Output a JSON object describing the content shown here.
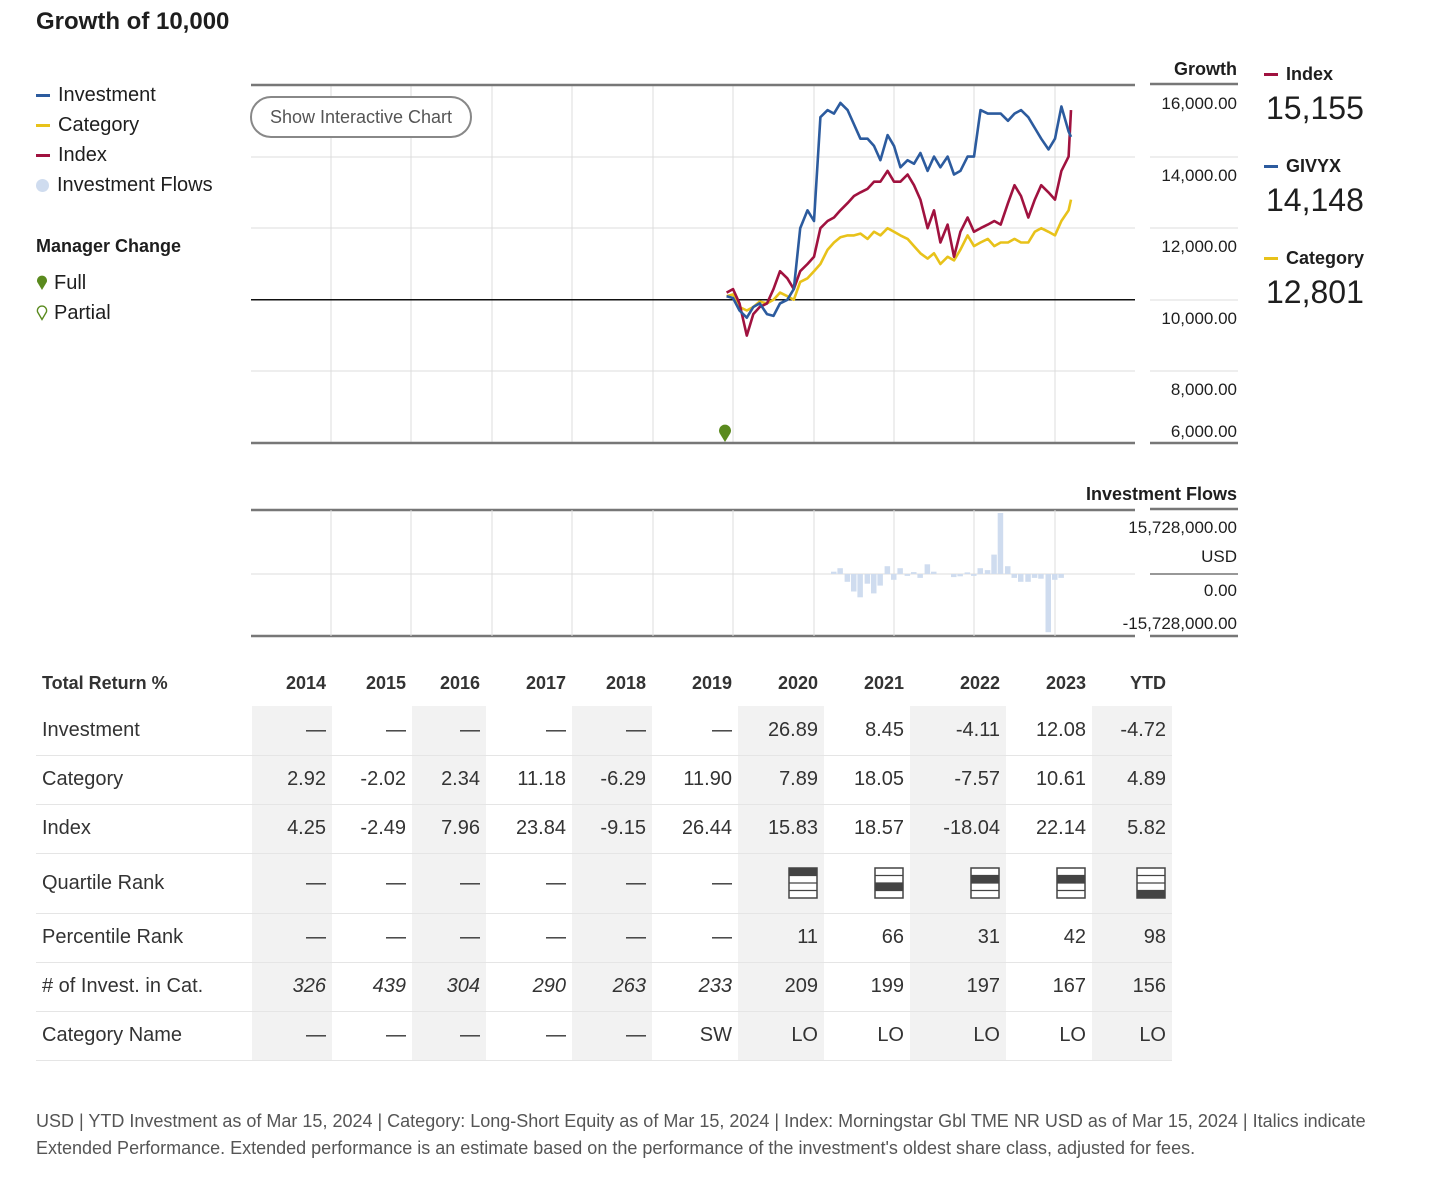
{
  "title": "Growth of 10,000",
  "legend": [
    {
      "label": "Investment",
      "color": "#2c5b9e",
      "kind": "line"
    },
    {
      "label": "Category",
      "color": "#e8c21a",
      "kind": "line"
    },
    {
      "label": "Index",
      "color": "#a0123f",
      "kind": "line"
    },
    {
      "label": "Investment Flows",
      "color": "#cfdcef",
      "kind": "dot"
    }
  ],
  "manager_change": {
    "title": "Manager Change",
    "full": "Full",
    "partial": "Partial",
    "color": "#5a8a1e"
  },
  "interactive_button": "Show Interactive Chart",
  "annotations": [
    {
      "name": "Index",
      "value": "15,155",
      "color": "#a0123f"
    },
    {
      "name": "GIVYX",
      "value": "14,148",
      "color": "#2c5b9e"
    },
    {
      "name": "Category",
      "value": "12,801",
      "color": "#e8c21a"
    }
  ],
  "chart_data": [
    {
      "type": "line",
      "ylabel": "Growth",
      "y_ticks": [
        "16,000.00",
        "14,000.00",
        "12,000.00",
        "10,000.00",
        "8,000.00",
        "6,000.00"
      ],
      "ylim": [
        6000,
        16000
      ],
      "xlim": [
        2014.0,
        2024.2
      ],
      "manager_change_full_at": 2019.9,
      "series": [
        {
          "name": "Investment",
          "color": "#2c5b9e",
          "x": [
            2019.92,
            2020.0,
            2020.08,
            2020.17,
            2020.25,
            2020.33,
            2020.42,
            2020.5,
            2020.58,
            2020.67,
            2020.75,
            2020.83,
            2020.92,
            2021.0,
            2021.08,
            2021.17,
            2021.25,
            2021.33,
            2021.42,
            2021.5,
            2021.58,
            2021.67,
            2021.75,
            2021.83,
            2021.92,
            2022.0,
            2022.08,
            2022.17,
            2022.25,
            2022.33,
            2022.42,
            2022.5,
            2022.58,
            2022.67,
            2022.75,
            2022.83,
            2022.92,
            2023.0,
            2023.08,
            2023.17,
            2023.25,
            2023.33,
            2023.42,
            2023.5,
            2023.58,
            2023.67,
            2023.75,
            2023.83,
            2023.92,
            2024.0,
            2024.08,
            2024.17,
            2024.2
          ],
          "y": [
            10100,
            10050,
            9700,
            9500,
            9800,
            9900,
            9600,
            9550,
            9900,
            10000,
            10300,
            12000,
            12500,
            12200,
            15100,
            15300,
            15200,
            15500,
            15300,
            14900,
            14500,
            14500,
            14300,
            13900,
            14600,
            14300,
            13700,
            13900,
            13800,
            14100,
            13600,
            14000,
            13700,
            14000,
            13500,
            13600,
            14000,
            14000,
            15300,
            15200,
            15200,
            15200,
            15000,
            15200,
            15300,
            15100,
            14800,
            14500,
            14200,
            14500,
            15400,
            14700,
            14550
          ]
        },
        {
          "name": "Category",
          "color": "#e8c21a",
          "x": [
            2019.92,
            2020.0,
            2020.08,
            2020.17,
            2020.25,
            2020.33,
            2020.42,
            2020.5,
            2020.58,
            2020.67,
            2020.75,
            2020.83,
            2020.92,
            2021.0,
            2021.08,
            2021.17,
            2021.25,
            2021.33,
            2021.42,
            2021.5,
            2021.58,
            2021.67,
            2021.75,
            2021.83,
            2021.92,
            2022.0,
            2022.08,
            2022.17,
            2022.25,
            2022.33,
            2022.42,
            2022.5,
            2022.58,
            2022.67,
            2022.75,
            2022.83,
            2022.92,
            2023.0,
            2023.08,
            2023.17,
            2023.25,
            2023.33,
            2023.42,
            2023.5,
            2023.58,
            2023.67,
            2023.75,
            2023.83,
            2023.92,
            2024.0,
            2024.08,
            2024.17,
            2024.2
          ],
          "y": [
            10100,
            10150,
            9800,
            9700,
            9800,
            9950,
            9900,
            10000,
            10200,
            10100,
            10000,
            10500,
            10600,
            10800,
            11000,
            11400,
            11600,
            11750,
            11800,
            11800,
            11850,
            11700,
            11900,
            11800,
            12000,
            11900,
            11800,
            11700,
            11500,
            11300,
            11150,
            11300,
            11000,
            11200,
            11100,
            11400,
            11800,
            11500,
            11600,
            11700,
            11500,
            11600,
            11600,
            11700,
            11600,
            11600,
            11900,
            12000,
            11900,
            11800,
            12200,
            12500,
            12800
          ]
        },
        {
          "name": "Index",
          "color": "#a0123f",
          "x": [
            2019.92,
            2020.0,
            2020.08,
            2020.17,
            2020.25,
            2020.33,
            2020.42,
            2020.5,
            2020.58,
            2020.67,
            2020.75,
            2020.83,
            2020.92,
            2021.0,
            2021.08,
            2021.17,
            2021.25,
            2021.33,
            2021.42,
            2021.5,
            2021.58,
            2021.67,
            2021.75,
            2021.83,
            2021.92,
            2022.0,
            2022.08,
            2022.17,
            2022.25,
            2022.33,
            2022.42,
            2022.5,
            2022.58,
            2022.67,
            2022.75,
            2022.83,
            2022.92,
            2023.0,
            2023.08,
            2023.17,
            2023.25,
            2023.33,
            2023.42,
            2023.5,
            2023.58,
            2023.67,
            2023.75,
            2023.83,
            2023.92,
            2024.0,
            2024.08,
            2024.17,
            2024.2
          ],
          "y": [
            10200,
            10300,
            9900,
            9000,
            9600,
            9800,
            9900,
            10300,
            10800,
            10600,
            10300,
            10800,
            11000,
            11200,
            12000,
            12200,
            12300,
            12500,
            12700,
            12900,
            13000,
            13100,
            13300,
            13300,
            13600,
            13300,
            13300,
            13500,
            13200,
            12800,
            12000,
            12500,
            11600,
            12100,
            11200,
            11900,
            12300,
            11900,
            12000,
            12100,
            12200,
            12100,
            12700,
            13200,
            12900,
            12300,
            12800,
            13200,
            13000,
            12800,
            13600,
            14000,
            15300
          ]
        }
      ]
    },
    {
      "type": "bar",
      "ylabel": "Investment Flows",
      "y_ticks": [
        "15,728,000.00",
        "USD",
        "0.00",
        "-15,728,000.00"
      ],
      "ylim": [
        -15728000,
        15728000
      ],
      "xlim": [
        2014.0,
        2024.2
      ],
      "x": [
        2020.42,
        2020.5,
        2020.58,
        2020.67,
        2020.75,
        2020.83,
        2020.92,
        2021.0,
        2021.08,
        2021.17,
        2021.25,
        2021.33,
        2021.42,
        2021.5,
        2021.58,
        2021.67,
        2021.75,
        2021.83,
        2021.92,
        2022.0,
        2022.08,
        2022.17,
        2022.25,
        2022.33,
        2022.42,
        2022.5,
        2022.58,
        2022.67,
        2022.75,
        2022.83,
        2022.92,
        2023.0,
        2023.08,
        2023.17,
        2023.25,
        2023.33,
        2023.42,
        2023.5,
        2023.58,
        2023.67,
        2023.75,
        2023.83,
        2023.92,
        2024.0,
        2024.08
      ],
      "values": [
        0,
        0,
        0,
        0,
        0,
        0,
        0,
        0,
        0,
        0,
        600000,
        1500000,
        -2000000,
        -4500000,
        -6000000,
        -2500000,
        -5000000,
        -3000000,
        2000000,
        -1500000,
        1500000,
        -500000,
        500000,
        -1000000,
        2500000,
        600000,
        0,
        0,
        -800000,
        -600000,
        400000,
        -500000,
        1500000,
        1000000,
        5000000,
        15728000,
        2000000,
        -1000000,
        -2000000,
        -2000000,
        -1000000,
        -1200000,
        -15000000,
        -1500000,
        -1000000
      ],
      "color": "#cfdcef"
    }
  ],
  "table": {
    "header": [
      "Total Return %",
      "2014",
      "2015",
      "2016",
      "2017",
      "2018",
      "2019",
      "2020",
      "2021",
      "2022",
      "2023",
      "YTD"
    ],
    "rows": [
      {
        "label": "Investment",
        "cells": [
          "—",
          "—",
          "—",
          "—",
          "—",
          "—",
          "26.89",
          "8.45",
          "-4.11",
          "12.08",
          "-4.72"
        ]
      },
      {
        "label": "Category",
        "cells": [
          "2.92",
          "-2.02",
          "2.34",
          "11.18",
          "-6.29",
          "11.90",
          "7.89",
          "18.05",
          "-7.57",
          "10.61",
          "4.89"
        ]
      },
      {
        "label": "Index",
        "cells": [
          "4.25",
          "-2.49",
          "7.96",
          "23.84",
          "-9.15",
          "26.44",
          "15.83",
          "18.57",
          "-18.04",
          "22.14",
          "5.82"
        ]
      },
      {
        "label": "Quartile Rank",
        "cells": [
          "—",
          "—",
          "—",
          "—",
          "—",
          "—"
        ],
        "quartiles": [
          1,
          3,
          2,
          2,
          4
        ]
      },
      {
        "label": "Percentile Rank",
        "cells": [
          "—",
          "—",
          "—",
          "—",
          "—",
          "—",
          "11",
          "66",
          "31",
          "42",
          "98"
        ]
      },
      {
        "label": "# of Invest. in Cat.",
        "cells": [
          "326",
          "439",
          "304",
          "290",
          "263",
          "233",
          "209",
          "199",
          "197",
          "167",
          "156"
        ],
        "italic_count": 6
      },
      {
        "label": "Category Name",
        "cells": [
          "—",
          "—",
          "—",
          "—",
          "—",
          "SW",
          "LO",
          "LO",
          "LO",
          "LO",
          "LO"
        ]
      }
    ]
  },
  "footer": "USD | YTD Investment as of Mar 15, 2024 | Category: Long-Short Equity as of Mar 15, 2024 | Index: Morningstar Gbl TME NR USD as of Mar 15, 2024 | Italics indicate Extended Performance. Extended performance is an estimate based on the performance of the investment's oldest share class, adjusted for fees."
}
